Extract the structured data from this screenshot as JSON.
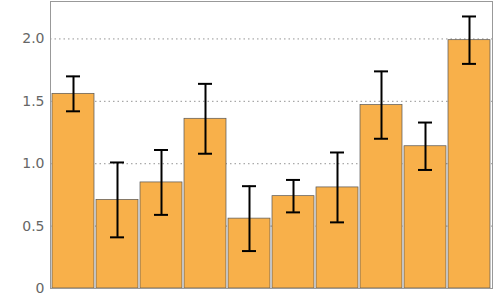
{
  "chart_data": {
    "type": "bar",
    "categories": [
      null,
      null,
      null,
      null,
      null,
      null,
      null,
      null,
      null,
      null
    ],
    "values": [
      1.56,
      0.71,
      0.85,
      1.36,
      0.56,
      0.74,
      0.81,
      1.47,
      1.14,
      1.99
    ],
    "errors": [
      0.14,
      0.3,
      0.26,
      0.28,
      0.26,
      0.13,
      0.28,
      0.27,
      0.19,
      0.19
    ],
    "color": "#f8b04a",
    "ylim": [
      0,
      2.3
    ],
    "yticks": [
      0,
      0.5,
      {
        "value": 1,
        "label": "1.0"
      },
      1.5,
      {
        "value": 2,
        "label": "2.0"
      }
    ],
    "grid": true
  }
}
